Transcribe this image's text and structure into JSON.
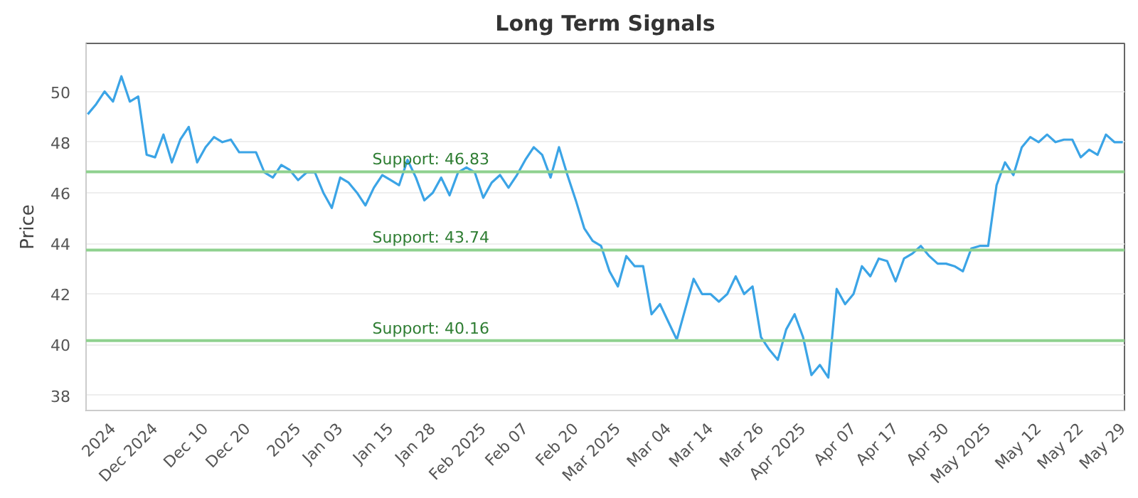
{
  "chart_data": {
    "type": "line",
    "title": "Long Term Signals",
    "ylabel": "Price",
    "categories": [
      null,
      null,
      null,
      "2024",
      null,
      null,
      null,
      null,
      "Dec 2024",
      null,
      null,
      null,
      null,
      null,
      "Dec 10",
      null,
      null,
      null,
      null,
      "Dec 20",
      null,
      null,
      null,
      null,
      null,
      "2025",
      null,
      null,
      null,
      null,
      "Jan 03",
      null,
      null,
      null,
      null,
      null,
      "Jan 15",
      null,
      null,
      null,
      null,
      "Jan 28",
      null,
      null,
      null,
      null,
      null,
      "Feb 2025",
      null,
      null,
      null,
      null,
      "Feb 07",
      null,
      null,
      null,
      null,
      null,
      "Feb 20",
      null,
      null,
      null,
      null,
      "Mar 2025",
      null,
      null,
      null,
      null,
      null,
      "Mar 04",
      null,
      null,
      null,
      null,
      "Mar 14",
      null,
      null,
      null,
      null,
      null,
      "Mar 26",
      null,
      null,
      null,
      null,
      "Apr 2025",
      null,
      null,
      null,
      null,
      null,
      "Apr 07",
      null,
      null,
      null,
      null,
      "Apr 17",
      null,
      null,
      null,
      null,
      null,
      "Apr 30",
      null,
      null,
      null,
      null,
      "May 2025",
      null,
      null,
      null,
      null,
      null,
      "May 12",
      null,
      null,
      null,
      null,
      "May 22",
      null,
      null,
      null,
      null,
      "May 29"
    ],
    "series": [
      {
        "color": "#3ba4e6",
        "values": [
          49.1,
          49.5,
          50.0,
          49.6,
          50.6,
          49.6,
          49.8,
          47.5,
          47.4,
          48.3,
          47.2,
          48.1,
          48.6,
          47.2,
          47.8,
          48.2,
          48.0,
          48.1,
          47.6,
          47.6,
          47.6,
          46.8,
          46.6,
          47.1,
          46.9,
          46.5,
          46.8,
          46.8,
          46.0,
          45.4,
          46.6,
          46.4,
          46.0,
          45.5,
          46.2,
          46.7,
          46.5,
          46.3,
          47.3,
          46.6,
          45.7,
          46.0,
          46.6,
          45.9,
          46.8,
          47.0,
          46.8,
          45.8,
          46.4,
          46.7,
          46.2,
          46.7,
          47.3,
          47.8,
          47.5,
          46.6,
          47.8,
          46.7,
          45.7,
          44.6,
          44.1,
          43.9,
          42.9,
          42.3,
          43.5,
          43.1,
          43.1,
          41.2,
          41.6,
          40.9,
          40.2,
          41.4,
          42.6,
          42.0,
          42.0,
          41.7,
          42.0,
          42.7,
          42.0,
          42.3,
          40.3,
          39.8,
          39.4,
          40.6,
          41.2,
          40.3,
          38.8,
          39.2,
          38.7,
          42.2,
          41.6,
          42.0,
          43.1,
          42.7,
          43.4,
          43.3,
          42.5,
          43.4,
          43.6,
          43.9,
          43.5,
          43.2,
          43.2,
          43.1,
          42.9,
          43.8,
          43.9,
          43.9,
          46.3,
          47.2,
          46.7,
          47.8,
          48.2,
          48.0,
          48.3,
          48.0,
          48.1,
          48.1,
          47.4,
          47.7,
          47.5,
          48.3,
          48.0,
          48.0
        ]
      }
    ],
    "ylim": [
      37.4,
      51.9
    ],
    "yticks": [
      38,
      40,
      42,
      44,
      46,
      48,
      50
    ],
    "grid": "y",
    "marker": "none",
    "line_style": "solid",
    "ref_lines": [
      {
        "axis": "y",
        "value": 46.83,
        "label": "Support: 46.83",
        "color": "#8fd18f"
      },
      {
        "axis": "y",
        "value": 43.74,
        "label": "Support: 43.74",
        "color": "#8fd18f"
      },
      {
        "axis": "y",
        "value": 40.16,
        "label": "Support: 40.16",
        "color": "#8fd18f"
      }
    ]
  }
}
